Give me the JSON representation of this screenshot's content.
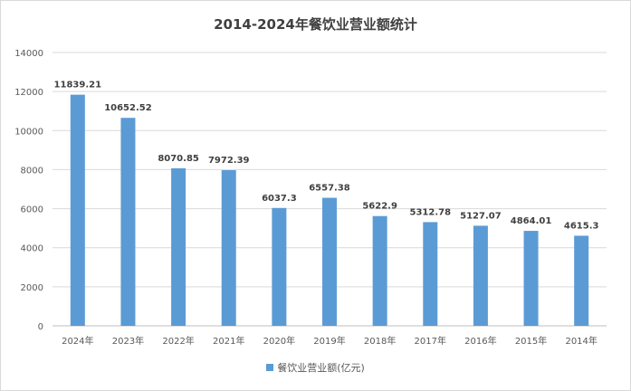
{
  "chart_data": {
    "type": "bar",
    "title": "2014-2024年餐饮业营业额统计",
    "categories": [
      "2024年",
      "2023年",
      "2022年",
      "2021年",
      "2020年",
      "2019年",
      "2018年",
      "2017年",
      "2016年",
      "2015年",
      "2014年"
    ],
    "series": [
      {
        "name": "餐饮业营业额(亿元)",
        "values": [
          11839.21,
          10652.52,
          8070.85,
          7972.39,
          6037.3,
          6557.38,
          5622.9,
          5312.78,
          5127.07,
          4864.01,
          4615.3
        ],
        "labels": [
          "11839.21",
          "10652.52",
          "8070.85",
          "7972.39",
          "6037.3",
          "6557.38",
          "5622.9",
          "5312.78",
          "5127.07",
          "4864.01",
          "4615.3"
        ]
      }
    ],
    "yticks": [
      "0",
      "2000",
      "4000",
      "6000",
      "8000",
      "10000",
      "12000",
      "14000"
    ],
    "ylim": [
      0,
      14000
    ],
    "xlabel": "",
    "ylabel": "",
    "grid": true,
    "legend_position": "bottom",
    "colors": {
      "bar": "#5b9bd5",
      "grid": "#d9d9d9",
      "axis": "#bfbfbf",
      "text": "#595959",
      "label": "#404040"
    }
  }
}
